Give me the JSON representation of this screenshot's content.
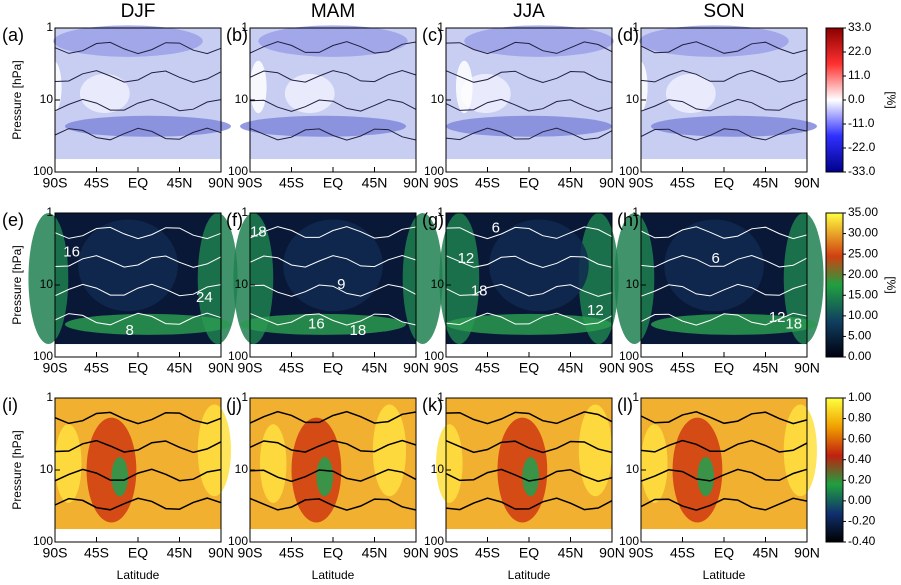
{
  "columns": [
    "DJF",
    "MAM",
    "JJA",
    "SON"
  ],
  "panel_labels": [
    "(a)",
    "(b)",
    "(c)",
    "(d)",
    "(e)",
    "(f)",
    "(g)",
    "(h)",
    "(i)",
    "(j)",
    "(k)",
    "(l)"
  ],
  "y_axis": {
    "label": "Pressure [hPa]",
    "scale": "log",
    "lim": [
      1,
      100
    ],
    "ticks": [
      1,
      10,
      100
    ]
  },
  "x_axis": {
    "label": "Latitude",
    "lim": [
      -90,
      90
    ],
    "ticks": [
      {
        "value": -90,
        "label": "90S"
      },
      {
        "value": -45,
        "label": "45S"
      },
      {
        "value": 0,
        "label": "EQ"
      },
      {
        "value": 45,
        "label": "45N"
      },
      {
        "value": 90,
        "label": "90N"
      }
    ]
  },
  "colorbars": [
    {
      "unit": "[%]",
      "lim": [
        -33,
        33
      ],
      "ticks": [
        {
          "value": 33,
          "label": "33.0"
        },
        {
          "value": 22,
          "label": "22.0"
        },
        {
          "value": 11,
          "label": "11.0"
        },
        {
          "value": 0,
          "label": "0.0"
        },
        {
          "value": -11,
          "label": "-11.0"
        },
        {
          "value": -22,
          "label": "-22.0"
        },
        {
          "value": -33,
          "label": "-33.0"
        }
      ]
    },
    {
      "unit": "[%]",
      "lim": [
        0,
        35
      ],
      "ticks": [
        {
          "value": 35,
          "label": "35.00"
        },
        {
          "value": 30,
          "label": "30.00"
        },
        {
          "value": 25,
          "label": "25.00"
        },
        {
          "value": 20,
          "label": "20.00"
        },
        {
          "value": 15,
          "label": "15.00"
        },
        {
          "value": 10,
          "label": "10.00"
        },
        {
          "value": 5,
          "label": "5.00"
        },
        {
          "value": 0,
          "label": "0.00"
        }
      ]
    },
    {
      "lim": [
        -0.4,
        1
      ],
      "ticks": [
        {
          "value": 1,
          "label": "1.00"
        },
        {
          "value": 0.8,
          "label": "0.80"
        },
        {
          "value": 0.6,
          "label": "0.60"
        },
        {
          "value": 0.4,
          "label": "0.40"
        },
        {
          "value": 0.2,
          "label": "0.20"
        },
        {
          "value": 0,
          "label": "0.00"
        },
        {
          "value": -0.2,
          "label": "-0.20"
        },
        {
          "value": -0.4,
          "label": "-0.40"
        }
      ]
    }
  ],
  "contour_labels": [
    [
      "16",
      "8",
      "24"
    ],
    [
      "18",
      "9",
      "16",
      "18"
    ],
    [
      "12",
      "6",
      "18",
      "12"
    ],
    [
      "6",
      "12",
      "18"
    ]
  ]
}
